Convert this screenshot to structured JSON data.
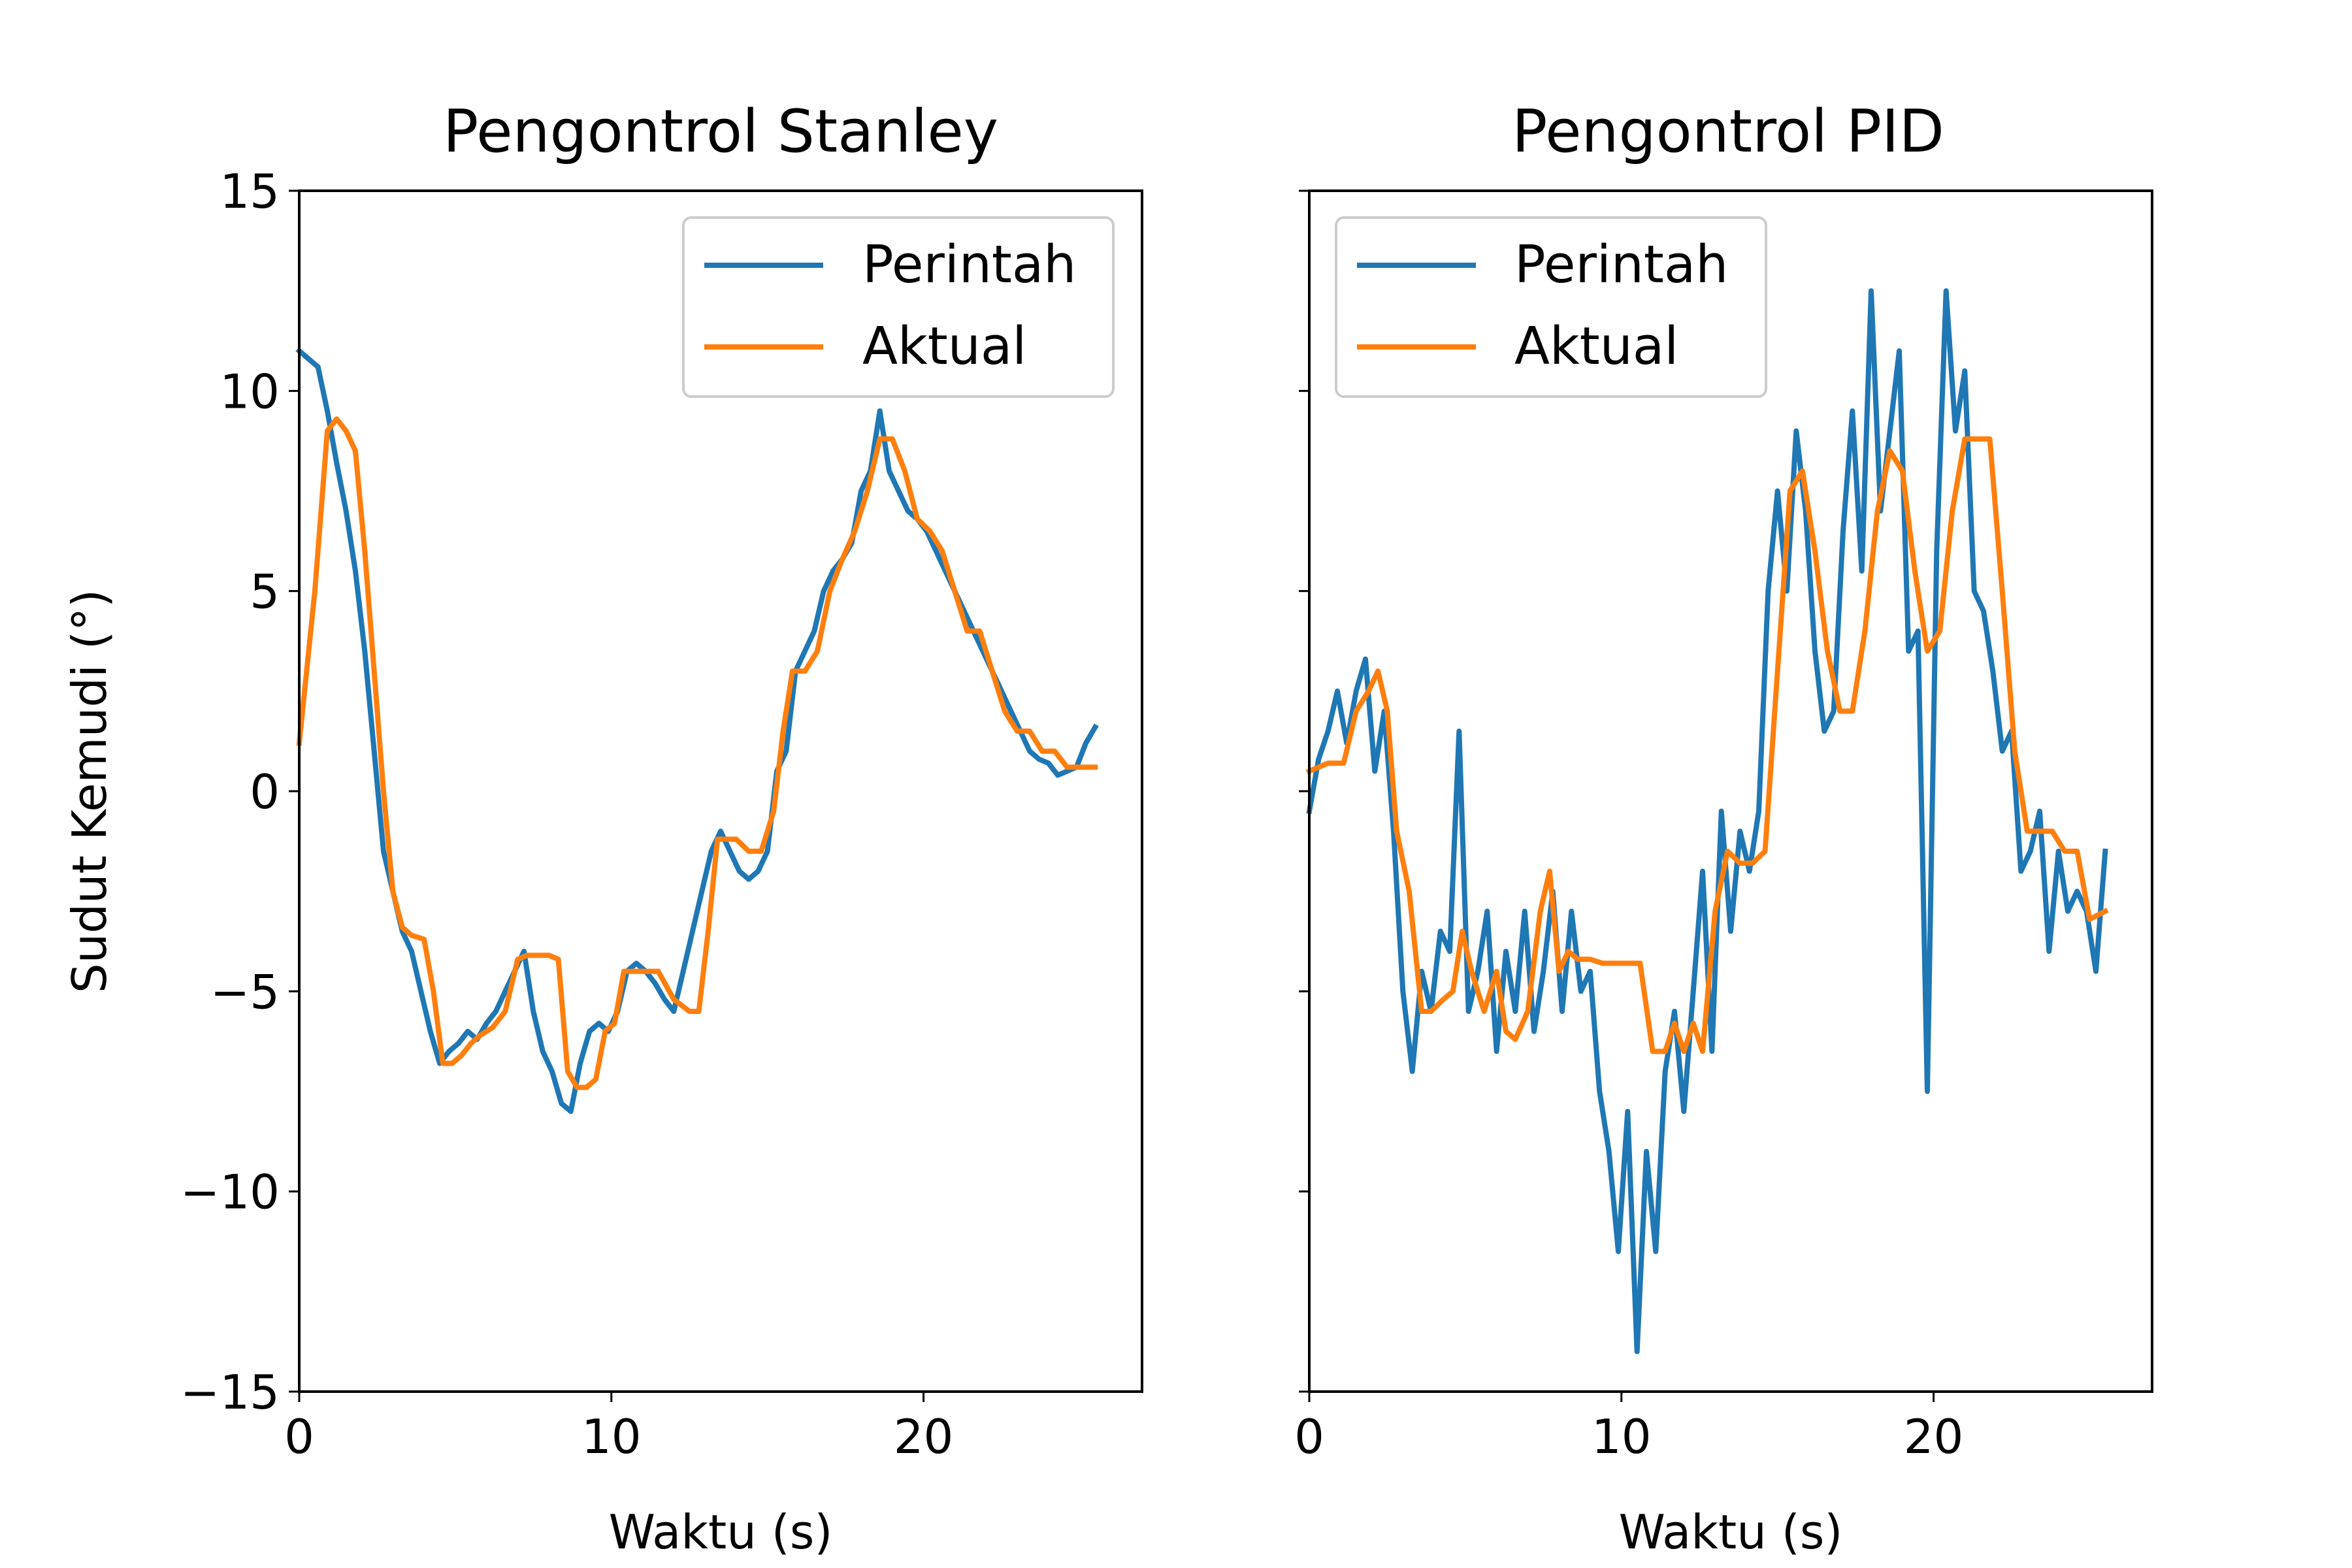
{
  "chart_data": [
    {
      "type": "line",
      "title": "Pengontrol Stanley",
      "xlabel": "Waktu (s)",
      "ylabel": "Sudut Kemudi (°)",
      "xlim": [
        0,
        27
      ],
      "ylim": [
        -15,
        15
      ],
      "xticks": [
        0,
        10,
        20
      ],
      "yticks": [
        15,
        10,
        5,
        0,
        -5,
        -10,
        -15
      ],
      "ytick_labels": [
        "15",
        "10",
        "5",
        "0",
        "−5",
        "−10",
        "−15"
      ],
      "legend_position": "upper right",
      "series": [
        {
          "name": "Perintah",
          "color": "#1f77b4",
          "x": [
            0.0,
            0.3,
            0.6,
            0.9,
            1.2,
            1.5,
            1.8,
            2.1,
            2.4,
            2.7,
            3.0,
            3.3,
            3.6,
            3.9,
            4.2,
            4.5,
            4.8,
            5.1,
            5.4,
            5.7,
            6.0,
            6.3,
            6.6,
            6.9,
            7.2,
            7.5,
            7.8,
            8.1,
            8.4,
            8.7,
            9.0,
            9.3,
            9.6,
            9.9,
            10.2,
            10.5,
            10.8,
            11.1,
            11.4,
            11.7,
            12.0,
            12.3,
            12.6,
            12.9,
            13.2,
            13.5,
            13.8,
            14.1,
            14.4,
            14.7,
            15.0,
            15.3,
            15.6,
            15.9,
            16.2,
            16.5,
            16.8,
            17.1,
            17.4,
            17.7,
            18.0,
            18.3,
            18.6,
            18.9,
            19.2,
            19.5,
            19.8,
            20.1,
            20.4,
            20.7,
            21.0,
            21.3,
            21.6,
            21.9,
            22.2,
            22.5,
            22.8,
            23.1,
            23.4,
            23.7,
            24.0,
            24.3,
            24.6,
            24.9,
            25.2,
            25.5
          ],
          "y": [
            11.0,
            10.8,
            10.6,
            9.5,
            8.2,
            7.0,
            5.5,
            3.5,
            1.0,
            -1.5,
            -2.5,
            -3.5,
            -4.0,
            -5.0,
            -6.0,
            -6.8,
            -6.5,
            -6.3,
            -6.0,
            -6.2,
            -5.8,
            -5.5,
            -5.0,
            -4.5,
            -4.0,
            -5.5,
            -6.5,
            -7.0,
            -7.8,
            -8.0,
            -6.8,
            -6.0,
            -5.8,
            -6.0,
            -5.5,
            -4.5,
            -4.3,
            -4.5,
            -4.8,
            -5.2,
            -5.5,
            -4.5,
            -3.5,
            -2.5,
            -1.5,
            -1.0,
            -1.5,
            -2.0,
            -2.2,
            -2.0,
            -1.5,
            0.5,
            1.0,
            3.0,
            3.5,
            4.0,
            5.0,
            5.5,
            5.8,
            6.2,
            7.5,
            8.0,
            9.5,
            8.0,
            7.5,
            7.0,
            6.8,
            6.5,
            6.0,
            5.5,
            5.0,
            4.5,
            4.0,
            3.5,
            3.0,
            2.5,
            2.0,
            1.5,
            1.0,
            0.8,
            0.7,
            0.4,
            0.5,
            0.6,
            1.2,
            1.6
          ]
        },
        {
          "name": "Aktual",
          "color": "#ff7f0e",
          "x": [
            0.0,
            0.5,
            0.9,
            1.2,
            1.5,
            1.8,
            2.1,
            2.4,
            2.7,
            3.0,
            3.3,
            3.6,
            4.0,
            4.3,
            4.6,
            4.9,
            5.2,
            5.5,
            5.8,
            6.2,
            6.6,
            7.0,
            7.3,
            7.6,
            8.0,
            8.3,
            8.6,
            8.9,
            9.2,
            9.5,
            9.8,
            10.1,
            10.4,
            10.7,
            11.0,
            11.5,
            12.0,
            12.5,
            12.8,
            13.1,
            13.4,
            13.7,
            14.0,
            14.4,
            14.8,
            15.2,
            15.5,
            15.8,
            16.2,
            16.6,
            17.0,
            17.4,
            17.8,
            18.2,
            18.6,
            19.0,
            19.4,
            19.8,
            20.2,
            20.6,
            21.0,
            21.4,
            21.8,
            22.2,
            22.6,
            23.0,
            23.4,
            23.8,
            24.2,
            24.6,
            25.0,
            25.5
          ],
          "y": [
            1.2,
            5.0,
            9.0,
            9.3,
            9.0,
            8.5,
            6.0,
            3.0,
            0.0,
            -2.5,
            -3.4,
            -3.6,
            -3.7,
            -5.0,
            -6.8,
            -6.8,
            -6.6,
            -6.3,
            -6.1,
            -5.9,
            -5.5,
            -4.2,
            -4.1,
            -4.1,
            -4.1,
            -4.2,
            -7.0,
            -7.4,
            -7.4,
            -7.2,
            -6.0,
            -5.8,
            -4.5,
            -4.5,
            -4.5,
            -4.5,
            -5.2,
            -5.5,
            -5.5,
            -3.5,
            -1.2,
            -1.2,
            -1.2,
            -1.5,
            -1.5,
            -0.5,
            1.5,
            3.0,
            3.0,
            3.5,
            5.0,
            5.8,
            6.5,
            7.5,
            8.8,
            8.8,
            8.0,
            6.8,
            6.5,
            6.0,
            5.0,
            4.0,
            4.0,
            3.0,
            2.0,
            1.5,
            1.5,
            1.0,
            1.0,
            0.6,
            0.6,
            0.6
          ]
        }
      ]
    },
    {
      "type": "line",
      "title": "Pengontrol PID",
      "xlabel": "Waktu (s)",
      "ylabel": "",
      "xlim": [
        0,
        27
      ],
      "ylim": [
        -15,
        15
      ],
      "xticks": [
        0,
        10,
        20
      ],
      "yticks": [
        15,
        10,
        5,
        0,
        -5,
        -10,
        -15
      ],
      "legend_position": "upper left",
      "series": [
        {
          "name": "Perintah",
          "color": "#1f77b4",
          "x": [
            0.0,
            0.3,
            0.6,
            0.9,
            1.2,
            1.5,
            1.8,
            2.1,
            2.4,
            2.7,
            3.0,
            3.3,
            3.6,
            3.9,
            4.2,
            4.5,
            4.8,
            5.1,
            5.4,
            5.7,
            6.0,
            6.3,
            6.6,
            6.9,
            7.2,
            7.5,
            7.8,
            8.1,
            8.4,
            8.7,
            9.0,
            9.3,
            9.6,
            9.9,
            10.2,
            10.5,
            10.8,
            11.1,
            11.4,
            11.7,
            12.0,
            12.3,
            12.6,
            12.9,
            13.2,
            13.5,
            13.8,
            14.1,
            14.4,
            14.7,
            15.0,
            15.3,
            15.6,
            15.9,
            16.2,
            16.5,
            16.8,
            17.1,
            17.4,
            17.7,
            18.0,
            18.3,
            18.6,
            18.9,
            19.2,
            19.5,
            19.8,
            20.1,
            20.4,
            20.7,
            21.0,
            21.3,
            21.6,
            21.9,
            22.2,
            22.5,
            22.8,
            23.1,
            23.4,
            23.7,
            24.0,
            24.3,
            24.6,
            24.9,
            25.2,
            25.5
          ],
          "y": [
            -0.5,
            0.8,
            1.5,
            2.5,
            1.2,
            2.5,
            3.3,
            0.5,
            2.0,
            -1.0,
            -5.0,
            -7.0,
            -4.5,
            -5.5,
            -3.5,
            -4.0,
            1.5,
            -5.5,
            -4.5,
            -3.0,
            -6.5,
            -4.0,
            -5.5,
            -3.0,
            -6.0,
            -4.5,
            -2.5,
            -5.5,
            -3.0,
            -5.0,
            -4.5,
            -7.5,
            -9.0,
            -11.5,
            -8.0,
            -14.0,
            -9.0,
            -11.5,
            -7.0,
            -5.5,
            -8.0,
            -5.0,
            -2.0,
            -6.5,
            -0.5,
            -3.5,
            -1.0,
            -2.0,
            -0.5,
            5.0,
            7.5,
            5.0,
            9.0,
            7.0,
            3.5,
            1.5,
            2.0,
            6.5,
            9.5,
            5.5,
            12.5,
            7.0,
            9.0,
            11.0,
            3.5,
            4.0,
            -7.5,
            6.0,
            12.5,
            9.0,
            10.5,
            5.0,
            4.5,
            3.0,
            1.0,
            1.5,
            -2.0,
            -1.5,
            -0.5,
            -4.0,
            -1.5,
            -3.0,
            -2.5,
            -3.0,
            -4.5,
            -1.5
          ]
        },
        {
          "name": "Aktual",
          "color": "#ff7f0e",
          "x": [
            0.0,
            0.6,
            1.1,
            1.5,
            1.9,
            2.2,
            2.5,
            2.8,
            3.2,
            3.6,
            3.9,
            4.3,
            4.6,
            4.9,
            5.2,
            5.6,
            6.0,
            6.3,
            6.6,
            7.0,
            7.4,
            7.7,
            8.0,
            8.3,
            8.6,
            9.0,
            9.4,
            9.8,
            10.2,
            10.6,
            11.0,
            11.4,
            11.7,
            12.0,
            12.3,
            12.6,
            13.0,
            13.4,
            13.8,
            14.2,
            14.6,
            15.0,
            15.4,
            15.8,
            16.2,
            16.6,
            17.0,
            17.4,
            17.8,
            18.2,
            18.6,
            19.0,
            19.4,
            19.8,
            20.2,
            20.6,
            21.0,
            21.4,
            21.8,
            22.2,
            22.6,
            23.0,
            23.4,
            23.8,
            24.2,
            24.6,
            25.0,
            25.5
          ],
          "y": [
            0.5,
            0.7,
            0.7,
            2.0,
            2.5,
            3.0,
            2.0,
            -1.0,
            -2.5,
            -5.5,
            -5.5,
            -5.2,
            -5.0,
            -3.5,
            -4.5,
            -5.5,
            -4.5,
            -6.0,
            -6.2,
            -5.5,
            -3.0,
            -2.0,
            -4.5,
            -4.0,
            -4.2,
            -4.2,
            -4.3,
            -4.3,
            -4.3,
            -4.3,
            -6.5,
            -6.5,
            -5.8,
            -6.5,
            -5.8,
            -6.5,
            -3.0,
            -1.5,
            -1.8,
            -1.8,
            -1.5,
            3.0,
            7.5,
            8.0,
            6.0,
            3.5,
            2.0,
            2.0,
            4.0,
            7.0,
            8.5,
            8.0,
            5.5,
            3.5,
            4.0,
            7.0,
            8.8,
            8.8,
            8.8,
            5.0,
            1.0,
            -1.0,
            -1.0,
            -1.0,
            -1.5,
            -1.5,
            -3.2,
            -3.0
          ]
        }
      ]
    }
  ]
}
